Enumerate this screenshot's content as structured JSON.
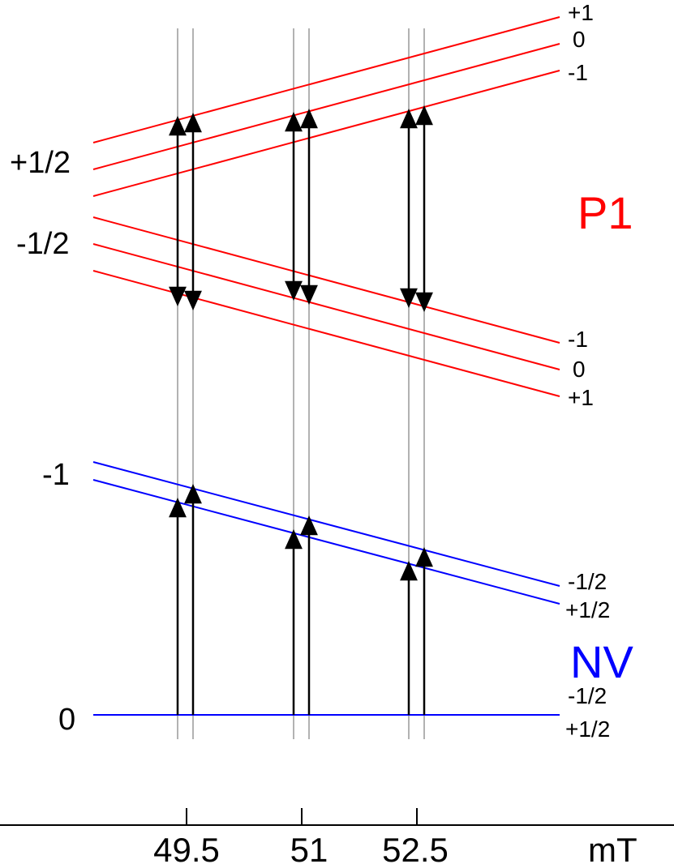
{
  "p1": {
    "title": "P1",
    "color": "#ff0000",
    "left_labels": {
      "upper": "+1/2",
      "lower": "-1/2"
    },
    "upper_right_labels": [
      "+1",
      "0",
      "-1"
    ],
    "lower_right_labels": [
      "-1",
      "0",
      "+1"
    ]
  },
  "nv": {
    "title": "NV",
    "color": "#0000ff",
    "left_labels": {
      "upper": "-1",
      "ground": "0"
    },
    "upper_right_labels": [
      "-1/2",
      "+1/2"
    ],
    "ground_right_labels": [
      "-1/2",
      "+1/2"
    ]
  },
  "axis": {
    "ticks": [
      "49.5",
      "51",
      "52.5"
    ],
    "unit": "mT"
  },
  "colors": {
    "transition_arrow": "#000000",
    "guide_line": "#999999"
  }
}
